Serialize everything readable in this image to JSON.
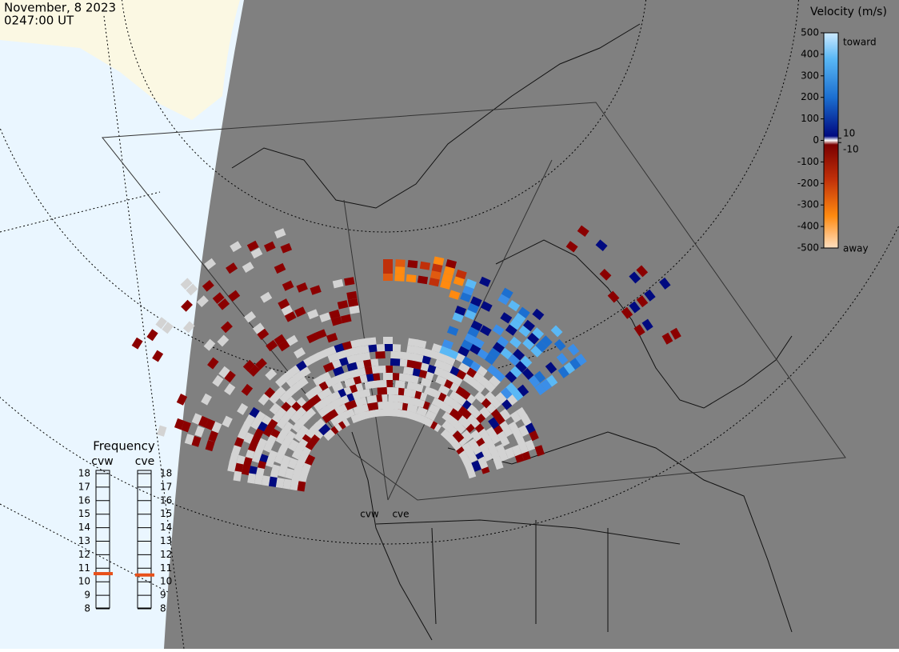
{
  "header": {
    "date": "November, 8 2023",
    "time": "0247:00 UT"
  },
  "velocity_legend": {
    "title": "Velocity (m/s)",
    "ticks": [
      500,
      400,
      300,
      200,
      100,
      0,
      -100,
      -200,
      -300,
      -400,
      -500
    ],
    "inner_ticks": [
      10,
      -10
    ],
    "top_label": "toward",
    "bottom_label": "away"
  },
  "frequency_panel": {
    "title": "Frequency",
    "radars": [
      "cvw",
      "cve"
    ],
    "levels": [
      18,
      17,
      16,
      15,
      14,
      13,
      12,
      11,
      10,
      9,
      8
    ],
    "current": [
      10.6,
      10.5
    ]
  },
  "map_labels": [
    "cvw",
    "cve"
  ]
}
